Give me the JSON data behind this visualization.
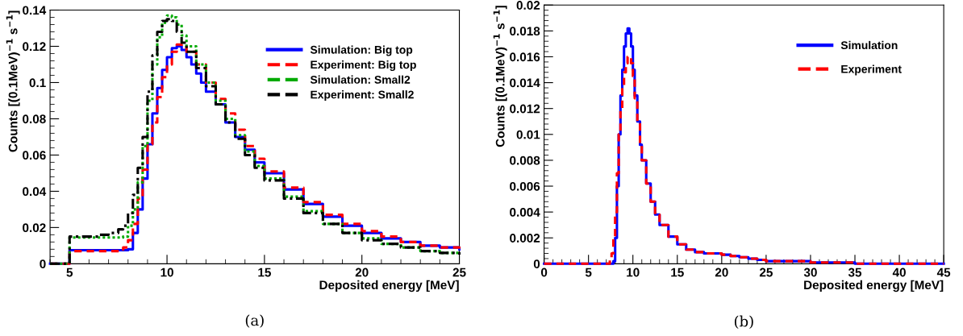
{
  "chart_data": [
    {
      "type": "step",
      "xlabel": "Deposited energy [MeV]",
      "ylabel": "Counts [(0.1MeV)$^{−1}$ s$^{−1}$]",
      "xlim": [
        4,
        25
      ],
      "ylim": [
        0,
        0.14
      ],
      "xticks": [
        5,
        10,
        15,
        20,
        25
      ],
      "yticks": [
        0,
        0.02,
        0.04,
        0.06,
        0.08,
        0.1,
        0.12,
        0.14
      ],
      "legend": "top right",
      "grid": false,
      "annotations": [
        "(a)"
      ],
      "series": [
        {
          "name": "Simulation: Big top",
          "color": "#0000ff",
          "line_style": "solid",
          "x": [
            4,
            5,
            7.75,
            8,
            8.25,
            8.5,
            8.75,
            9,
            9.25,
            9.5,
            9.75,
            10,
            10.25,
            10.5,
            10.75,
            11,
            11.25,
            11.5,
            11.75,
            12,
            12.5,
            13,
            13.5,
            14,
            14.5,
            15,
            16,
            17,
            18,
            19,
            20,
            21,
            22,
            23,
            24,
            25
          ],
          "values": [
            0,
            0.0075,
            0.0075,
            0.008,
            0.017,
            0.03,
            0.047,
            0.066,
            0.083,
            0.097,
            0.107,
            0.114,
            0.119,
            0.12,
            0.118,
            0.114,
            0.11,
            0.105,
            0.1,
            0.095,
            0.088,
            0.078,
            0.07,
            0.063,
            0.056,
            0.05,
            0.041,
            0.033,
            0.026,
            0.021,
            0.017,
            0.014,
            0.012,
            0.01,
            0.009,
            0.008
          ]
        },
        {
          "name": "Experiment: Big top",
          "color": "#ff0000",
          "line_style": "dashed",
          "x": [
            4,
            5,
            7.75,
            8,
            8.25,
            8.5,
            8.75,
            9,
            9.25,
            9.5,
            9.75,
            10,
            10.25,
            10.5,
            10.75,
            11,
            11.5,
            12,
            12.5,
            13,
            13.5,
            14,
            14.5,
            15,
            16,
            17,
            18,
            19,
            20,
            21,
            22,
            23,
            24,
            25
          ],
          "values": [
            0,
            0.007,
            0.009,
            0.013,
            0.022,
            0.036,
            0.052,
            0.066,
            0.078,
            0.092,
            0.103,
            0.11,
            0.117,
            0.121,
            0.12,
            0.117,
            0.11,
            0.1,
            0.091,
            0.083,
            0.074,
            0.065,
            0.058,
            0.051,
            0.042,
            0.034,
            0.027,
            0.022,
            0.018,
            0.015,
            0.012,
            0.01,
            0.009,
            0.008
          ]
        },
        {
          "name": "Simulation: Small2",
          "color": "#00aa00",
          "line_style": "dotted",
          "x": [
            4,
            5,
            7.75,
            8,
            8.25,
            8.5,
            8.75,
            9,
            9.25,
            9.5,
            9.75,
            10,
            10.25,
            10.5,
            10.75,
            11,
            11.5,
            12,
            12.5,
            13,
            13.5,
            14,
            14.5,
            15,
            16,
            17,
            18,
            19,
            20,
            21,
            22,
            23,
            24,
            25
          ],
          "values": [
            0,
            0.0145,
            0.015,
            0.021,
            0.03,
            0.045,
            0.065,
            0.09,
            0.11,
            0.125,
            0.133,
            0.137,
            0.136,
            0.132,
            0.126,
            0.12,
            0.11,
            0.1,
            0.09,
            0.08,
            0.071,
            0.062,
            0.054,
            0.047,
            0.037,
            0.029,
            0.022,
            0.017,
            0.014,
            0.011,
            0.009,
            0.007,
            0.006,
            0.005
          ]
        },
        {
          "name": "Experiment: Small2",
          "color": "#000000",
          "line_style": "dashdot",
          "x": [
            4,
            5,
            6.5,
            7,
            7.5,
            7.75,
            8,
            8.25,
            8.5,
            8.75,
            9,
            9.25,
            9.5,
            9.75,
            10,
            10.25,
            10.5,
            10.75,
            11,
            11.5,
            12,
            12.5,
            13,
            13.5,
            14,
            14.5,
            15,
            16,
            17,
            18,
            19,
            20,
            21,
            22,
            23,
            24,
            25
          ],
          "values": [
            0,
            0.015,
            0.016,
            0.017,
            0.019,
            0.021,
            0.028,
            0.038,
            0.053,
            0.07,
            0.095,
            0.115,
            0.128,
            0.134,
            0.135,
            0.134,
            0.128,
            0.122,
            0.117,
            0.108,
            0.098,
            0.088,
            0.078,
            0.069,
            0.06,
            0.053,
            0.046,
            0.036,
            0.028,
            0.022,
            0.017,
            0.013,
            0.011,
            0.009,
            0.007,
            0.006,
            0.005
          ]
        }
      ]
    },
    {
      "type": "step",
      "xlabel": "Deposited energy [MeV]",
      "ylabel": "Counts [(0.1MeV)$^{−1}$ s$^{−1}$]",
      "xlim": [
        0,
        45
      ],
      "ylim": [
        0,
        0.02
      ],
      "xticks": [
        0,
        5,
        10,
        15,
        20,
        25,
        30,
        35,
        40,
        45
      ],
      "yticks": [
        0,
        0.002,
        0.004,
        0.006,
        0.008,
        0.01,
        0.012,
        0.014,
        0.016,
        0.018,
        0.02
      ],
      "legend": "top right",
      "grid": false,
      "annotations": [
        "(b)"
      ],
      "series": [
        {
          "name": "Simulation",
          "color": "#0000ff",
          "line_style": "solid",
          "x": [
            0,
            7.8,
            8,
            8.2,
            8.4,
            8.6,
            8.8,
            9,
            9.2,
            9.4,
            9.6,
            9.8,
            10,
            10.2,
            10.5,
            10.8,
            11,
            11.5,
            12,
            12.5,
            13,
            14,
            15,
            16,
            17,
            18,
            19,
            20,
            21,
            22,
            23,
            24,
            25,
            27,
            30,
            33,
            35,
            45
          ],
          "values": [
            0,
            0.0002,
            0.002,
            0.006,
            0.01,
            0.013,
            0.015,
            0.0168,
            0.0178,
            0.0182,
            0.0178,
            0.0168,
            0.015,
            0.013,
            0.011,
            0.0092,
            0.008,
            0.0062,
            0.0048,
            0.0038,
            0.003,
            0.0021,
            0.0015,
            0.0011,
            0.0009,
            0.0008,
            0.0008,
            0.0007,
            0.0006,
            0.0005,
            0.0004,
            0.0003,
            0.0002,
            0.0002,
            0.0001,
            0.0001,
            0,
            0
          ]
        },
        {
          "name": "Experiment",
          "color": "#ff0000",
          "line_style": "dashed",
          "x": [
            0,
            7.4,
            7.6,
            7.8,
            8,
            8.2,
            8.4,
            8.6,
            8.8,
            9,
            9.2,
            9.4,
            9.6,
            9.8,
            10,
            10.2,
            10.5,
            10.8,
            11,
            11.5,
            12,
            12.5,
            13,
            14,
            15,
            16,
            17,
            18,
            19,
            20,
            21,
            22,
            23,
            24,
            25,
            27,
            30,
            33,
            35,
            45
          ],
          "values": [
            0,
            0.0003,
            0.0008,
            0.002,
            0.004,
            0.007,
            0.01,
            0.012,
            0.0135,
            0.0148,
            0.0155,
            0.016,
            0.016,
            0.0155,
            0.0145,
            0.0128,
            0.0108,
            0.0091,
            0.008,
            0.0062,
            0.0048,
            0.0038,
            0.003,
            0.0021,
            0.0015,
            0.0011,
            0.0009,
            0.0008,
            0.0008,
            0.0007,
            0.0006,
            0.0005,
            0.0004,
            0.0003,
            0.0002,
            0.0002,
            0.0001,
            0.0001,
            0,
            0
          ]
        }
      ]
    }
  ]
}
